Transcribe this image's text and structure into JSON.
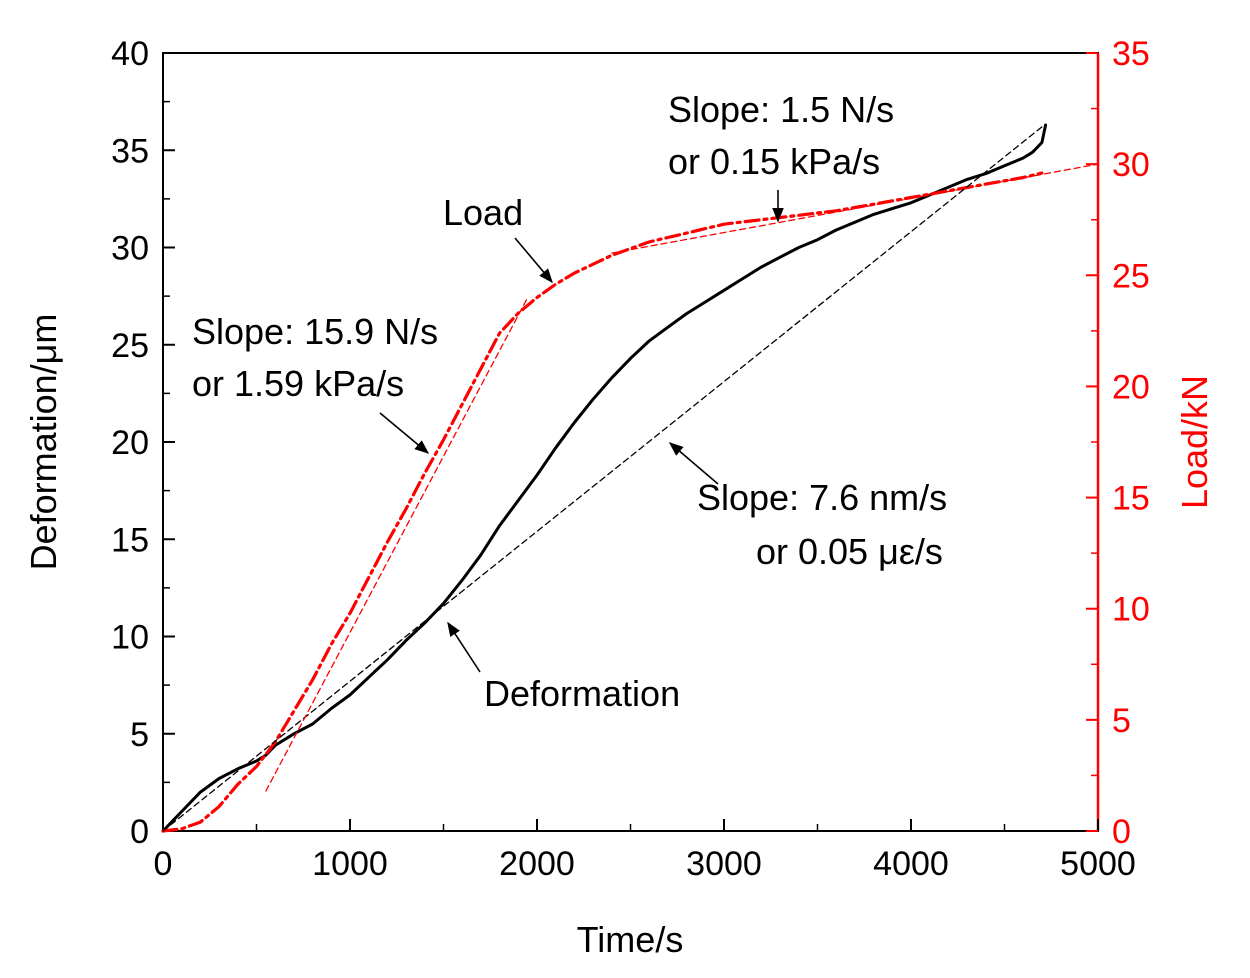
{
  "chart_data": {
    "type": "line",
    "title": "",
    "xlabel": "Time/s",
    "ylabel_left": "Deformation/μm",
    "ylabel_right": "Load/kN",
    "xlim": [
      0,
      5000
    ],
    "ylim_left": [
      0,
      40
    ],
    "ylim_right": [
      0,
      35
    ],
    "x_ticks": [
      0,
      1000,
      2000,
      3000,
      4000,
      5000
    ],
    "y_left_ticks": [
      0,
      5,
      10,
      15,
      20,
      25,
      30,
      35,
      40
    ],
    "y_right_ticks": [
      0,
      5,
      10,
      15,
      20,
      25,
      30,
      35
    ],
    "x_tick_labels": [
      "0",
      "1000",
      "2000",
      "3000",
      "4000",
      "5000"
    ],
    "y_left_tick_labels": [
      "0",
      "5",
      "10",
      "15",
      "20",
      "25",
      "30",
      "35",
      "40"
    ],
    "y_right_tick_labels": [
      "0",
      "5",
      "10",
      "15",
      "20",
      "25",
      "30",
      "35"
    ],
    "grid": false,
    "colors": {
      "deformation": "#000000",
      "load": "#ff0000",
      "fit": "#000000",
      "load_fit": "#ff0000"
    },
    "series": [
      {
        "name": "Deformation",
        "axis": "left",
        "style": "solid",
        "x": [
          0,
          50,
          100,
          200,
          300,
          400,
          500,
          550,
          600,
          700,
          800,
          900,
          1000,
          1100,
          1200,
          1300,
          1400,
          1500,
          1600,
          1700,
          1800,
          1900,
          2000,
          2100,
          2200,
          2300,
          2400,
          2500,
          2600,
          2700,
          2800,
          2900,
          3000,
          3100,
          3200,
          3300,
          3400,
          3500,
          3600,
          3700,
          3800,
          3900,
          4000,
          4100,
          4200,
          4300,
          4400,
          4500,
          4600,
          4650,
          4700,
          4720
        ],
        "y": [
          0,
          0.5,
          1,
          2,
          2.7,
          3.2,
          3.6,
          3.9,
          4.4,
          5,
          5.5,
          6.3,
          7,
          7.9,
          8.8,
          9.8,
          10.7,
          11.7,
          12.9,
          14.2,
          15.7,
          17,
          18.3,
          19.7,
          21,
          22.2,
          23.3,
          24.3,
          25.2,
          25.9,
          26.6,
          27.2,
          27.8,
          28.4,
          29,
          29.5,
          30,
          30.4,
          30.9,
          31.3,
          31.7,
          32,
          32.3,
          32.7,
          33.1,
          33.5,
          33.8,
          34.2,
          34.6,
          34.9,
          35.4,
          36.3
        ]
      },
      {
        "name": "Load",
        "axis": "right",
        "style": "dash-dot",
        "x": [
          0,
          100,
          200,
          300,
          400,
          500,
          600,
          700,
          800,
          900,
          1000,
          1100,
          1200,
          1300,
          1400,
          1500,
          1600,
          1700,
          1800,
          1900,
          2000,
          2100,
          2200,
          2300,
          2400,
          2500,
          2600,
          2700,
          2800,
          2900,
          3000,
          3100,
          3200,
          3300,
          3400,
          3500,
          3600,
          3700,
          3800,
          3900,
          4000,
          4100,
          4200,
          4300,
          4400,
          4500,
          4600,
          4700
        ],
        "y": [
          0,
          0.1,
          0.4,
          1.1,
          2.1,
          2.9,
          4,
          5.4,
          6.8,
          8.4,
          9.8,
          11.4,
          13,
          14.5,
          16.1,
          17.6,
          19.2,
          20.8,
          22.4,
          23.3,
          24,
          24.6,
          25.1,
          25.5,
          25.9,
          26.2,
          26.5,
          26.7,
          26.9,
          27.1,
          27.3,
          27.4,
          27.5,
          27.6,
          27.7,
          27.8,
          27.9,
          28.05,
          28.2,
          28.35,
          28.5,
          28.65,
          28.8,
          28.95,
          29.1,
          29.25,
          29.4,
          29.6
        ]
      },
      {
        "name": "Deformation fit (7.6 nm/s)",
        "axis": "left",
        "style": "dashed-thin",
        "x": [
          0,
          4700
        ],
        "y": [
          0,
          36.2
        ]
      },
      {
        "name": "Load fit (15.9 N/s)",
        "axis": "right",
        "style": "dashed-thin",
        "x": [
          550,
          1950
        ],
        "y": [
          1.8,
          24
        ]
      },
      {
        "name": "Load fit (1.5 N/s)",
        "axis": "right",
        "style": "dashed-thin",
        "x": [
          2400,
          5000
        ],
        "y": [
          26,
          30
        ]
      }
    ],
    "annotations": {
      "slope_load_high_1": "Slope: 15.9 N/s",
      "slope_load_high_2": "or  1.59 kPa/s",
      "slope_load_low_1": "Slope: 1.5 N/s",
      "slope_load_low_2": "or  0.15 kPa/s",
      "slope_def_1": "Slope: 7.6 nm/s",
      "slope_def_2": "or  0.05 με/s",
      "load_label": "Load",
      "deformation_label": "Deformation"
    }
  }
}
